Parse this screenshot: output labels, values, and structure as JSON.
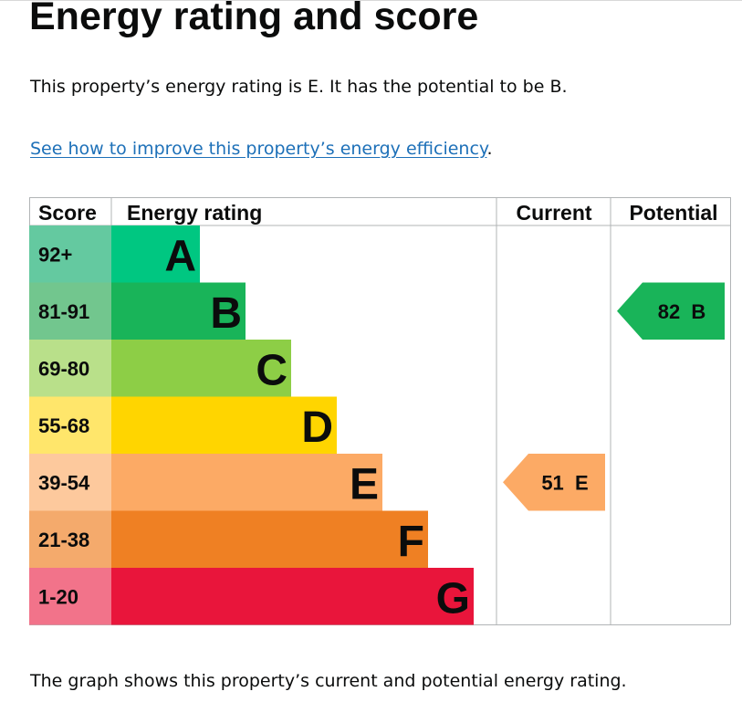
{
  "page": {
    "heading": "Energy rating and score",
    "summary": "This property’s energy rating is E. It has the potential to be B.",
    "improve_link": "See how to improve this property’s energy efficiency",
    "improve_link_suffix": ".",
    "caption": "The graph shows this property’s current and potential energy rating."
  },
  "chart_data": {
    "type": "bar",
    "headers": {
      "score": "Score",
      "rating": "Energy rating",
      "current": "Current",
      "potential": "Potential"
    },
    "bands": [
      {
        "letter": "A",
        "range": "92+",
        "bar_color": "#00c781",
        "score_bg": "#64c9a0"
      },
      {
        "letter": "B",
        "range": "81-91",
        "bar_color": "#19b459",
        "score_bg": "#72c68e"
      },
      {
        "letter": "C",
        "range": "69-80",
        "bar_color": "#8dce46",
        "score_bg": "#b9e08a"
      },
      {
        "letter": "D",
        "range": "55-68",
        "bar_color": "#ffd500",
        "score_bg": "#ffe66b"
      },
      {
        "letter": "E",
        "range": "39-54",
        "bar_color": "#fcaa65",
        "score_bg": "#fdc99d"
      },
      {
        "letter": "F",
        "range": "21-38",
        "bar_color": "#ef8023",
        "score_bg": "#f4aa6c"
      },
      {
        "letter": "G",
        "range": "1-20",
        "bar_color": "#e9153b",
        "score_bg": "#f2738a"
      }
    ],
    "current": {
      "score": 51,
      "letter": "E",
      "label": "51  E"
    },
    "potential": {
      "score": 82,
      "letter": "B",
      "label": "82  B"
    },
    "grid": true
  }
}
